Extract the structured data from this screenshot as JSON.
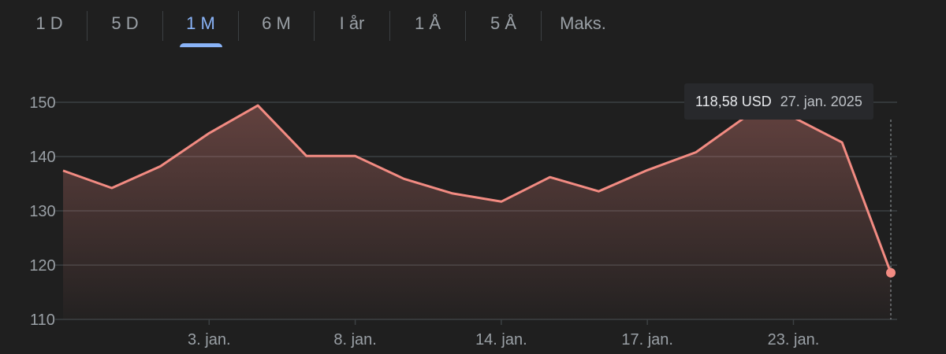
{
  "tabs": [
    {
      "label": "1 D",
      "active": false
    },
    {
      "label": "5 D",
      "active": false
    },
    {
      "label": "1 M",
      "active": true
    },
    {
      "label": "6 M",
      "active": false
    },
    {
      "label": "I år",
      "active": false
    },
    {
      "label": "1 Å",
      "active": false
    },
    {
      "label": "5 Å",
      "active": false
    },
    {
      "label": "Maks.",
      "active": false
    }
  ],
  "tooltip": {
    "price": "118,58 USD",
    "date": "27. jan. 2025"
  },
  "colors": {
    "line": "#f28b82",
    "accent": "#8ab4f8",
    "grid": "#3c4043",
    "background": "#1f1f1f"
  },
  "chart_data": {
    "type": "area",
    "ylim": [
      110,
      150
    ],
    "yticks": [
      110,
      120,
      130,
      140,
      150
    ],
    "ytick_labels": [
      "110",
      "120",
      "130",
      "140",
      "150"
    ],
    "xtick_labels": [
      {
        "label": "3. jan.",
        "index": 3
      },
      {
        "label": "8. jan.",
        "index": 6
      },
      {
        "label": "14. jan.",
        "index": 9
      },
      {
        "label": "17. jan.",
        "index": 12
      },
      {
        "label": "23. jan.",
        "index": 15
      }
    ],
    "grid": true,
    "series": [
      {
        "values": [
          137.4,
          134.2,
          138.2,
          144.3,
          149.4,
          140.1,
          140.1,
          135.9,
          133.2,
          131.7,
          136.2,
          133.6,
          137.5,
          140.8,
          147.2,
          147.2,
          142.6,
          118.58
        ]
      }
    ],
    "highlight_index": 17
  }
}
